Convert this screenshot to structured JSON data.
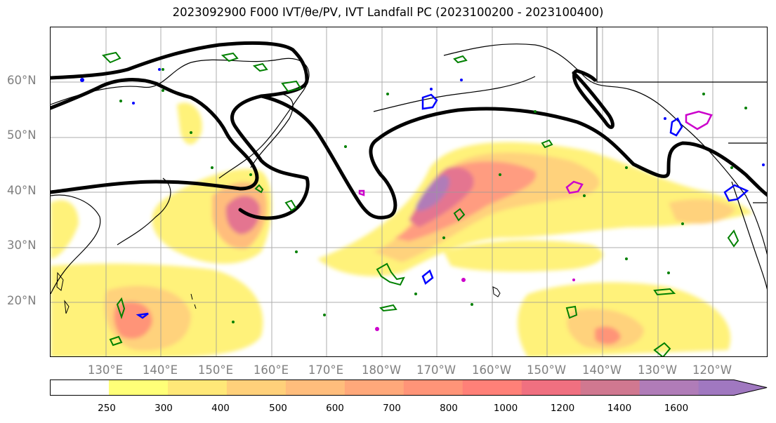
{
  "title": "2023092900 F000 IVT/θe/PV, IVT Landfall PC (2023100200 - 2023100400)",
  "map": {
    "projection": "PlateCarree",
    "lon_range": [
      120,
      250
    ],
    "lat_range": [
      10,
      70
    ],
    "gridlines": true,
    "lat_ticks": [
      "60°N",
      "50°N",
      "40°N",
      "30°N",
      "20°N"
    ],
    "lon_ticks": [
      "130°E",
      "140°E",
      "150°E",
      "160°E",
      "170°E",
      "180°W",
      "170°W",
      "160°W",
      "150°W",
      "140°W",
      "130°W",
      "120°W"
    ],
    "layers": [
      {
        "name": "IVT shaded",
        "color_ramp": "yellow-orange-red-purple"
      },
      {
        "name": "PV contour",
        "color": "#000000"
      },
      {
        "name": "theta-e contour (green)",
        "color": "#008000"
      },
      {
        "name": "theta-e contour (blue)",
        "color": "#0000ff"
      },
      {
        "name": "IVT landfall PC (magenta)",
        "color": "#cc00cc"
      }
    ]
  },
  "colorbar": {
    "levels": [
      "250",
      "300",
      "400",
      "500",
      "600",
      "700",
      "800",
      "1000",
      "1200",
      "1400",
      "1600"
    ],
    "colors": [
      "#ffffff",
      "#ffff78",
      "#ffe878",
      "#ffd07a",
      "#ffbd7c",
      "#ffa87a",
      "#ff9478",
      "#ff8078",
      "#f07080",
      "#d07890",
      "#b07cb8",
      "#a078c0"
    ],
    "extend": "max"
  }
}
